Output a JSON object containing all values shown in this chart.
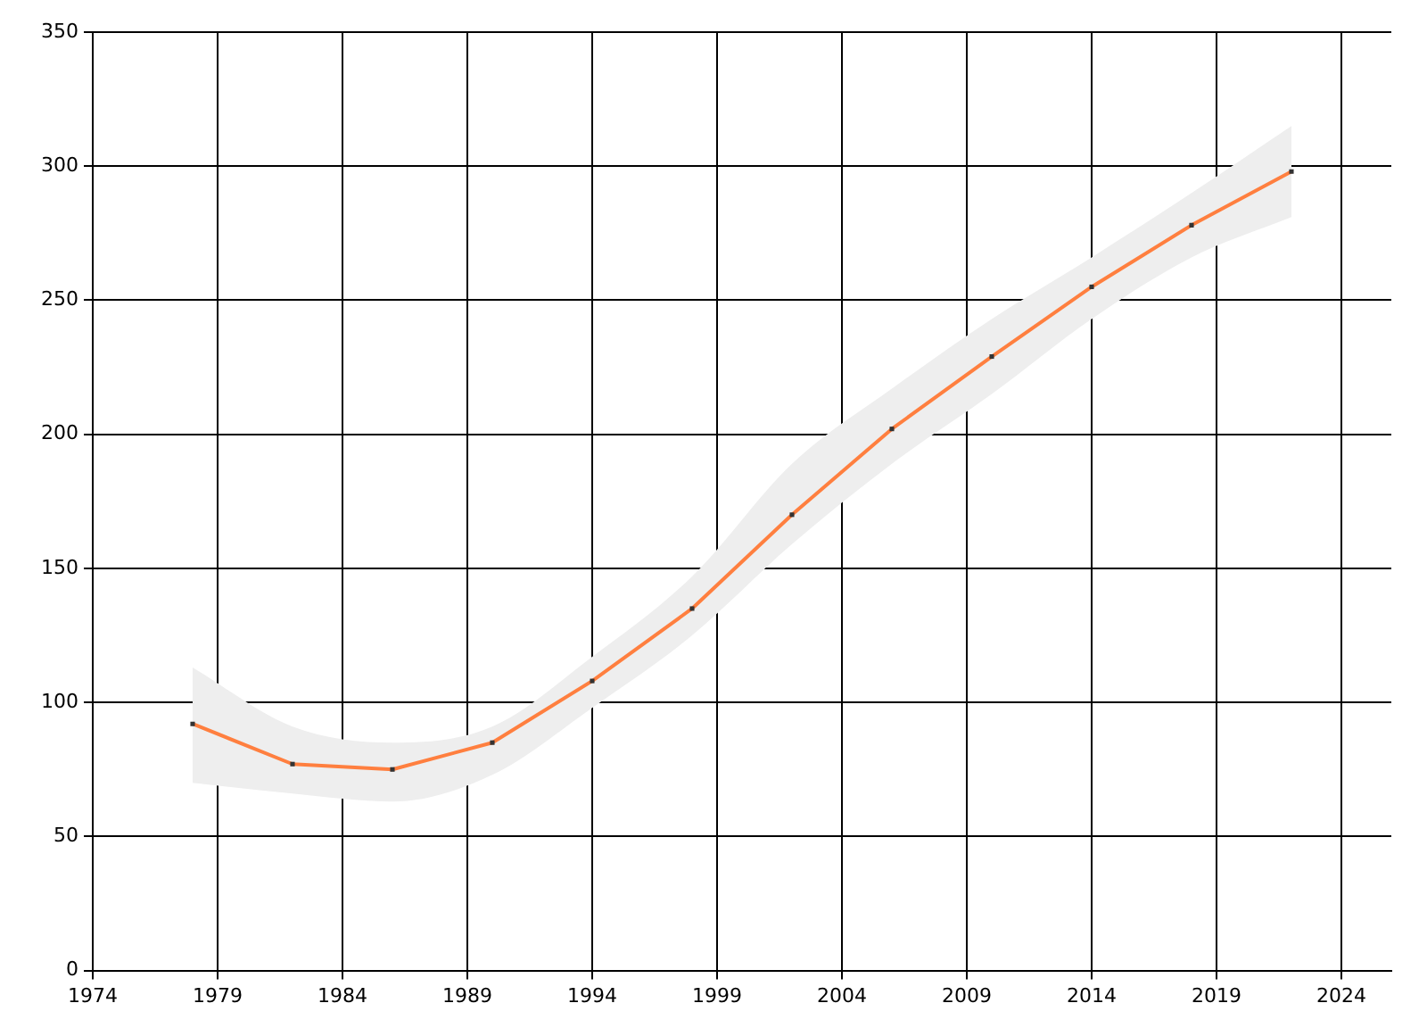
{
  "chart_data": {
    "type": "line",
    "x": [
      1978,
      1982,
      1986,
      1990,
      1994,
      1998,
      2002,
      2006,
      2010,
      2014,
      2018,
      2022
    ],
    "series": [
      {
        "color": "#ff7f3f",
        "values": [
          92,
          77,
          75,
          85,
          108,
          135,
          170,
          202,
          229,
          255,
          278,
          298
        ],
        "lower": [
          70,
          66,
          63,
          73,
          98,
          125,
          159,
          189,
          215,
          243,
          266,
          281
        ],
        "upper": [
          113,
          91,
          85,
          91,
          117,
          147,
          189,
          217,
          243,
          266,
          290,
          315
        ]
      }
    ],
    "xlim": [
      1974,
      2026
    ],
    "xticks": [
      1974,
      1979,
      1984,
      1989,
      1994,
      1999,
      2004,
      2009,
      2014,
      2019,
      2024
    ],
    "ylim": [
      0,
      350
    ],
    "yticks": [
      0,
      50,
      100,
      150,
      200,
      250,
      300,
      350
    ],
    "grid": true,
    "legend": false,
    "marker": "square",
    "line_style": "solid"
  }
}
